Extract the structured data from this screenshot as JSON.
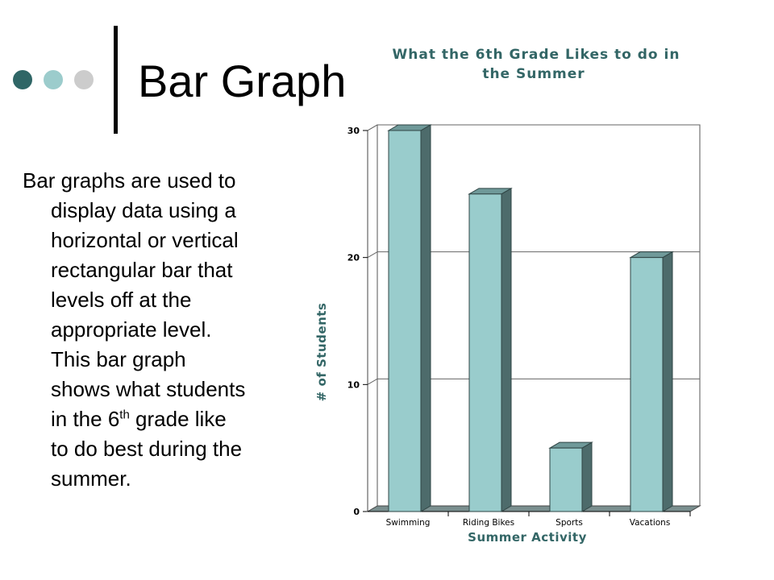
{
  "slide": {
    "title": "Bar Graph",
    "body": {
      "line1": "Bar graphs are used to",
      "lines": [
        "display data using a",
        "horizontal or vertical",
        "rectangular bar that",
        "levels off at the",
        "appropriate level.",
        "This bar graph",
        "shows what students"
      ],
      "line_sup_pre": "in the 6",
      "line_sup": "th",
      "line_sup_post": " grade like",
      "lines_end": [
        "to do best during the",
        "summer."
      ]
    },
    "dot_colors": [
      "#2f6666",
      "#9ccccc",
      "#cccccc"
    ]
  },
  "colors": {
    "bar_front": "#99cccc",
    "bar_side": "#4d6b6b",
    "bar_top": "#6f9999",
    "floor": "#7a8f8f",
    "title": "#336666"
  },
  "chart_data": {
    "type": "bar",
    "title_lines": [
      "What the 6th Grade Likes to do in",
      "the Summer"
    ],
    "xlabel": "Summer Activity",
    "ylabel": "# of Students",
    "categories": [
      "Swimming",
      "Riding Bikes",
      "Sports",
      "Vacations"
    ],
    "values": [
      30,
      25,
      5,
      20
    ],
    "ylim": [
      0,
      30
    ],
    "yticks": [
      0,
      10,
      20,
      30
    ],
    "grid": true,
    "style": "3d-column",
    "legend": "none"
  }
}
